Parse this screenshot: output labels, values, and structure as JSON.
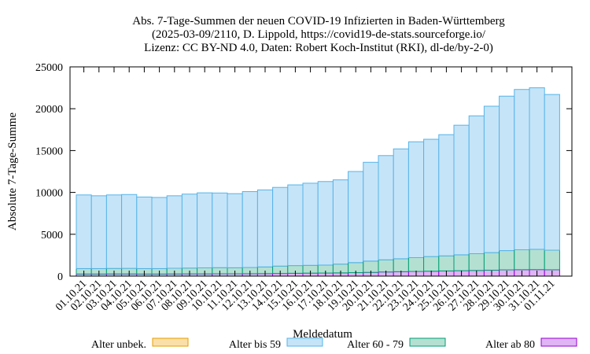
{
  "chart_data": {
    "type": "bar",
    "stacked": true,
    "title_lines": [
      "Abs. 7-Tage-Summen der neuen COVID-19 Infizierten in Baden-Württemberg",
      "(2025-03-09/2110, D. Lippold, https://covid19-de-stats.sourceforge.io/",
      "Lizenz: CC BY-ND 4.0, Daten: Robert Koch-Institut (RKI), dl-de/by-2-0)"
    ],
    "xlabel": "Meldedatum",
    "ylabel": "Absolute 7-Tage-Summe",
    "ylim": [
      0,
      25000
    ],
    "yticks": [
      0,
      5000,
      10000,
      15000,
      20000,
      25000
    ],
    "grid": false,
    "legend_position": "bottom",
    "categories": [
      "01.10.21",
      "02.10.21",
      "03.10.21",
      "04.10.21",
      "05.10.21",
      "06.10.21",
      "07.10.21",
      "08.10.21",
      "09.10.21",
      "10.10.21",
      "11.10.21",
      "12.10.21",
      "13.10.21",
      "14.10.21",
      "15.10.21",
      "16.10.21",
      "17.10.21",
      "18.10.21",
      "19.10.21",
      "20.10.21",
      "21.10.21",
      "22.10.21",
      "23.10.21",
      "24.10.21",
      "25.10.21",
      "26.10.21",
      "27.10.21",
      "28.10.21",
      "29.10.21",
      "30.10.21",
      "31.10.21",
      "01.11.21"
    ],
    "series": [
      {
        "name": "Alter ab 80",
        "fill": "#e0b4f5",
        "stroke": "#9400d3",
        "values": [
          250,
          250,
          260,
          260,
          250,
          250,
          260,
          270,
          270,
          280,
          280,
          290,
          300,
          320,
          340,
          360,
          370,
          390,
          420,
          450,
          500,
          530,
          560,
          590,
          620,
          650,
          680,
          710,
          750,
          770,
          780,
          760
        ]
      },
      {
        "name": "Alter 60 - 79",
        "fill": "#b4e0d2",
        "stroke": "#009e73",
        "values": [
          650,
          650,
          660,
          670,
          650,
          650,
          680,
          700,
          720,
          730,
          720,
          740,
          800,
          880,
          920,
          930,
          950,
          1050,
          1200,
          1350,
          1450,
          1550,
          1650,
          1750,
          1800,
          1900,
          2000,
          2100,
          2300,
          2380,
          2420,
          2340
        ]
      },
      {
        "name": "Alter bis 59",
        "fill": "#c6e4f8",
        "stroke": "#56b4e9",
        "values": [
          8800,
          8700,
          8780,
          8820,
          8550,
          8500,
          8660,
          8830,
          8960,
          8920,
          8850,
          9070,
          9200,
          9400,
          9640,
          9810,
          9980,
          10060,
          10880,
          11800,
          12450,
          13120,
          13840,
          14010,
          14480,
          15480,
          16470,
          17490,
          18450,
          19150,
          19300,
          18600
        ]
      },
      {
        "name": "Alter unbek.",
        "fill": "#fbdfa8",
        "stroke": "#e69f00",
        "values": [
          0,
          0,
          0,
          0,
          0,
          0,
          0,
          0,
          0,
          0,
          0,
          0,
          0,
          0,
          0,
          0,
          0,
          0,
          0,
          0,
          0,
          0,
          0,
          0,
          0,
          0,
          0,
          0,
          0,
          0,
          0,
          0
        ]
      }
    ],
    "legend": [
      "Alter unbek.",
      "Alter bis 59",
      "Alter 60 - 79",
      "Alter ab 80"
    ]
  }
}
